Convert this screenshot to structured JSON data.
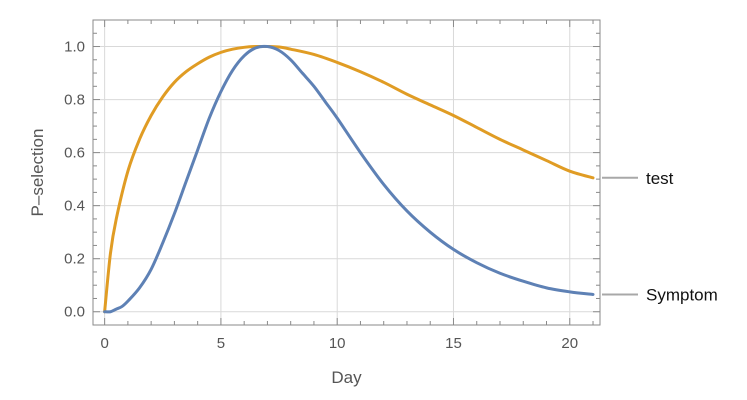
{
  "chart_data": {
    "type": "line",
    "title": "",
    "xlabel": "Day",
    "ylabel": "P–selection",
    "xlim": [
      -0.5,
      21.3
    ],
    "ylim": [
      -0.05,
      1.1
    ],
    "xticks": [
      0,
      5,
      10,
      15,
      20
    ],
    "xtick_labels": [
      "0",
      "5",
      "10",
      "15",
      "20"
    ],
    "yticks": [
      0.0,
      0.2,
      0.4,
      0.6,
      0.8,
      1.0
    ],
    "ytick_labels": [
      "0.0",
      "0.2",
      "0.4",
      "0.6",
      "0.8",
      "1.0"
    ],
    "grid": true,
    "legend_placement": "right, at line ends",
    "series": [
      {
        "name": "test",
        "color": "#E09C24",
        "x": [
          0,
          0.25,
          0.5,
          1,
          1.5,
          2,
          2.5,
          3,
          3.5,
          4,
          4.5,
          5,
          5.5,
          6,
          6.5,
          7,
          7.5,
          8,
          9,
          10,
          11,
          12,
          13,
          14,
          15,
          16,
          17,
          18,
          19,
          20,
          21
        ],
        "y": [
          0,
          0.22,
          0.35,
          0.53,
          0.65,
          0.74,
          0.81,
          0.865,
          0.905,
          0.935,
          0.96,
          0.978,
          0.99,
          0.997,
          1.0,
          1.0,
          0.998,
          0.99,
          0.97,
          0.94,
          0.905,
          0.865,
          0.82,
          0.78,
          0.74,
          0.695,
          0.65,
          0.61,
          0.57,
          0.53,
          0.505
        ]
      },
      {
        "name": "Symptom",
        "color": "#5E81B5",
        "x": [
          0,
          0.25,
          0.5,
          0.75,
          1,
          1.5,
          2,
          2.5,
          3,
          3.5,
          4,
          4.5,
          5,
          5.5,
          6,
          6.5,
          7,
          7.5,
          8,
          8.5,
          9,
          9.5,
          10,
          11,
          12,
          13,
          14,
          15,
          16,
          17,
          18,
          19,
          20,
          21
        ],
        "y": [
          0,
          0.0,
          0.01,
          0.02,
          0.04,
          0.09,
          0.16,
          0.26,
          0.37,
          0.49,
          0.61,
          0.73,
          0.83,
          0.91,
          0.965,
          0.995,
          1.0,
          0.985,
          0.95,
          0.9,
          0.85,
          0.79,
          0.73,
          0.6,
          0.48,
          0.38,
          0.3,
          0.235,
          0.185,
          0.145,
          0.115,
          0.09,
          0.075,
          0.065
        ]
      }
    ]
  }
}
